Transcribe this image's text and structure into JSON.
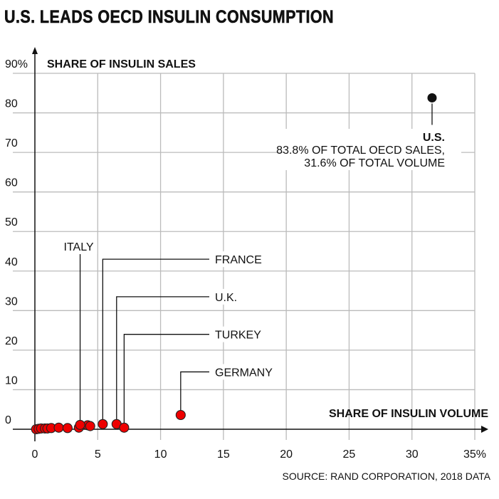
{
  "chart_data": {
    "type": "scatter",
    "title": "U.S. LEADS OECD INSULIN CONSUMPTION",
    "xlabel": "SHARE OF INSULIN VOLUME",
    "ylabel": "SHARE OF INSULIN SALES",
    "xlim": [
      0,
      35
    ],
    "ylim": [
      0,
      90
    ],
    "grid": true,
    "x_ticks": [
      0,
      5,
      10,
      15,
      20,
      25,
      30,
      35
    ],
    "x_tick_labels": [
      "0",
      "5",
      "10",
      "15",
      "20",
      "25",
      "30",
      "35%"
    ],
    "y_ticks": [
      0,
      10,
      20,
      30,
      40,
      50,
      60,
      70,
      80,
      90
    ],
    "y_tick_labels": [
      "0",
      "10",
      "20",
      "30",
      "40",
      "50",
      "60",
      "70",
      "80",
      "90%"
    ],
    "colors": {
      "highlight": "#111111",
      "default": "#ee0000",
      "grid": "#bbbbbb",
      "axis": "#111111"
    },
    "points": [
      {
        "name": "U.S.",
        "x": 31.6,
        "y": 83.8,
        "highlight": true
      },
      {
        "name": "Germany",
        "x": 11.6,
        "y": 3.6
      },
      {
        "name": "Turkey",
        "x": 7.1,
        "y": 0.4
      },
      {
        "name": "U.K.",
        "x": 6.5,
        "y": 1.3
      },
      {
        "name": "France",
        "x": 5.4,
        "y": 1.3
      },
      {
        "name": "Italy",
        "x": 3.6,
        "y": 1.1
      },
      {
        "name": "",
        "x": 4.4,
        "y": 0.8
      },
      {
        "name": "",
        "x": 4.2,
        "y": 1.0
      },
      {
        "name": "",
        "x": 3.5,
        "y": 0.4
      },
      {
        "name": "",
        "x": 2.6,
        "y": 0.3
      },
      {
        "name": "",
        "x": 1.9,
        "y": 0.4
      },
      {
        "name": "",
        "x": 1.3,
        "y": 0.3
      },
      {
        "name": "",
        "x": 1.0,
        "y": 0.2
      },
      {
        "name": "",
        "x": 0.8,
        "y": 0.2
      },
      {
        "name": "",
        "x": 0.5,
        "y": 0.2
      },
      {
        "name": "",
        "x": 0.3,
        "y": 0.1
      },
      {
        "name": "",
        "x": 0.1,
        "y": 0.0
      }
    ],
    "annotations": [
      {
        "point": "U.S.",
        "lines": [
          "U.S.",
          "83.8% OF TOTAL OECD SALES,",
          "31.6% OF TOTAL VOLUME"
        ],
        "bold_first": true
      },
      {
        "point": "Italy",
        "lines": [
          "ITALY"
        ],
        "label_y": 45
      },
      {
        "point": "France",
        "lines": [
          "FRANCE"
        ],
        "label_y": 43
      },
      {
        "point": "U.K.",
        "lines": [
          "U.K."
        ],
        "label_y": 33.5
      },
      {
        "point": "Turkey",
        "lines": [
          "TURKEY"
        ],
        "label_y": 24
      },
      {
        "point": "Germany",
        "lines": [
          "GERMANY"
        ],
        "label_y": 14.5
      }
    ],
    "source": "SOURCE: RAND CORPORATION, 2018 DATA"
  }
}
